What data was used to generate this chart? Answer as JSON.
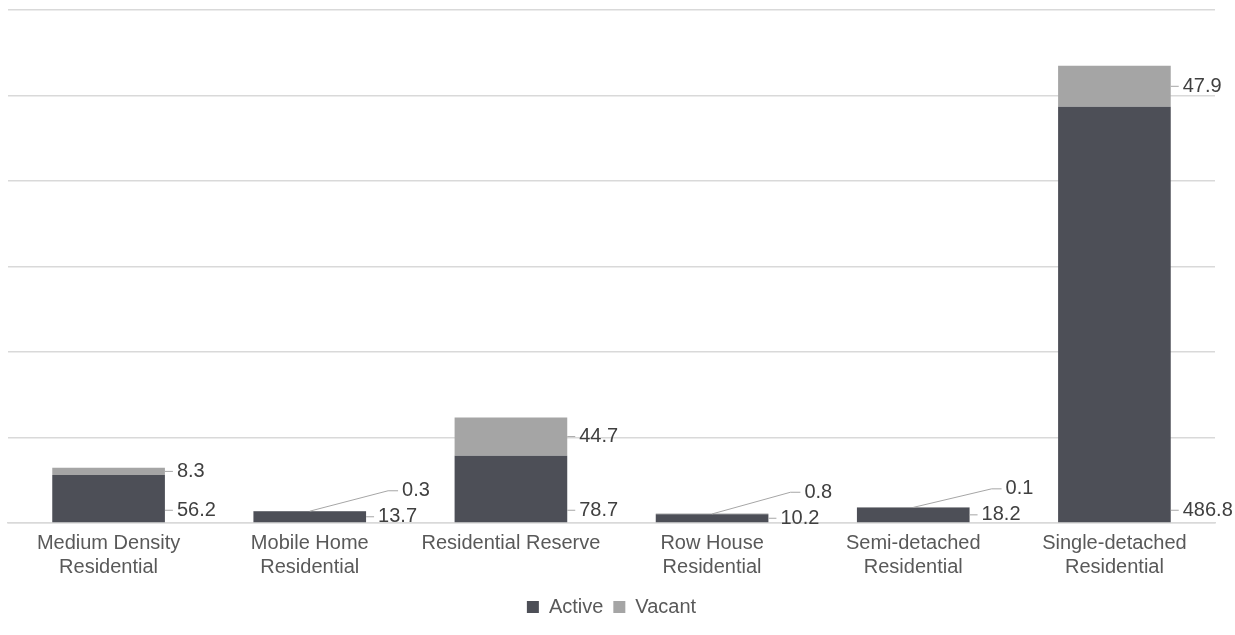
{
  "chart_data": {
    "type": "bar",
    "stacked": true,
    "categories": [
      "Medium Density Residential",
      "Mobile Home Residential",
      "Residential Reserve",
      "Row House Residential",
      "Semi-detached Residential",
      "Single-detached Residential"
    ],
    "series": [
      {
        "name": "Active",
        "color": "#4d4f57",
        "values": [
          56.2,
          13.7,
          78.7,
          10.2,
          18.2,
          486.8
        ]
      },
      {
        "name": "Vacant",
        "color": "#a5a5a5",
        "values": [
          8.3,
          0.3,
          44.7,
          0.8,
          0.1,
          47.9
        ]
      }
    ],
    "ylim": [
      0,
      600
    ],
    "yticks": [
      {
        "value": 0,
        "label": null
      },
      {
        "value": 100,
        "label": null
      },
      {
        "value": 200,
        "label": null
      },
      {
        "value": 300,
        "label": null
      },
      {
        "value": 400,
        "label": null
      },
      {
        "value": 500,
        "label": null
      },
      {
        "value": 600,
        "label": null
      }
    ],
    "tick_labels": "x",
    "grid": "y",
    "legend": "bottom",
    "data_labels": true
  }
}
